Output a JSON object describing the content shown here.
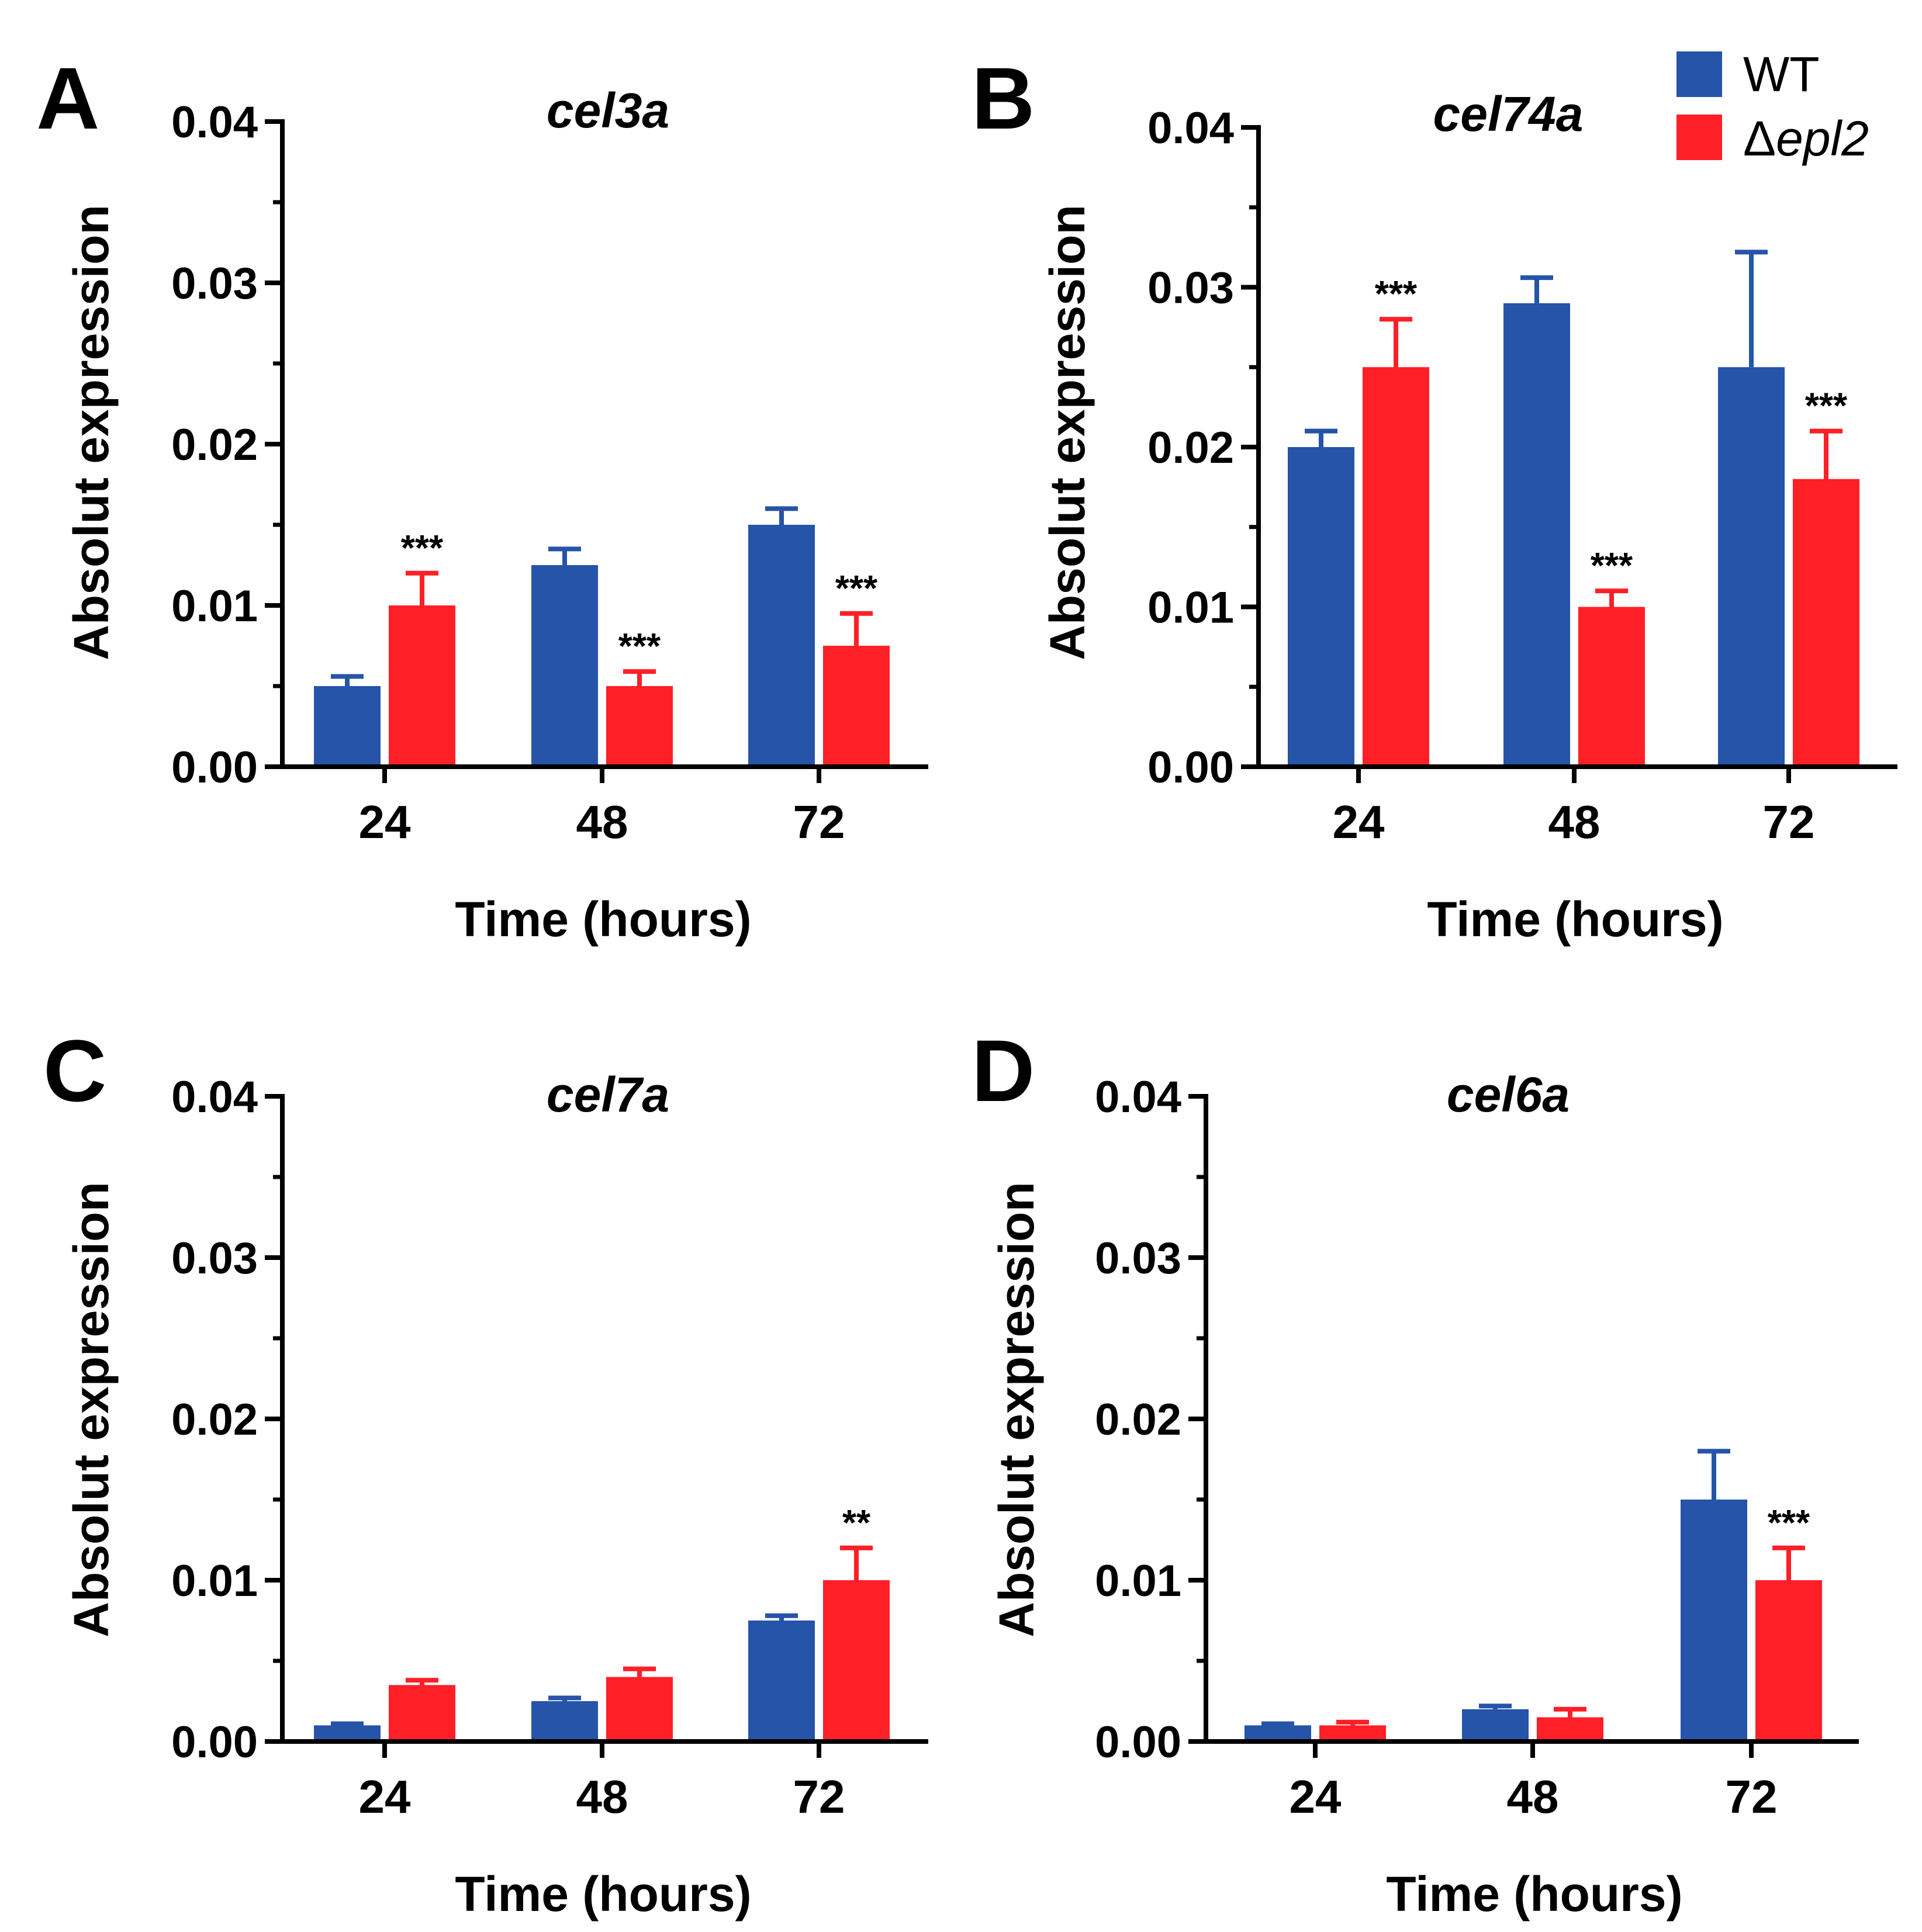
{
  "legend": {
    "entries": [
      {
        "label": "WT",
        "color": "#2554a8",
        "series": "WT"
      },
      {
        "label_prefix": "Δ",
        "label_italic": "epl2",
        "color": "#ff1f26",
        "series": "delta_epl2"
      }
    ]
  },
  "colors": {
    "wt": "#2554a8",
    "mutant": "#ff1f26",
    "axis": "#000000"
  },
  "chart_data": [
    {
      "panel": "A",
      "type": "bar",
      "title": "cel3a",
      "xlabel": "Time (hours)",
      "ylabel": "Absolut expression",
      "categories": [
        "24",
        "48",
        "72"
      ],
      "ylim": [
        0,
        0.04
      ],
      "yticks": [
        "0.00",
        "0.01",
        "0.02",
        "0.03",
        "0.04"
      ],
      "series": [
        {
          "name": "WT",
          "values": [
            0.005,
            0.0125,
            0.015
          ],
          "errors": [
            0.0006,
            0.001,
            0.001
          ]
        },
        {
          "name": "Δepl2",
          "values": [
            0.01,
            0.005,
            0.0075
          ],
          "errors": [
            0.002,
            0.0009,
            0.002
          ]
        }
      ],
      "annotations": [
        {
          "category": "24",
          "series": "Δepl2",
          "text": "***"
        },
        {
          "category": "48",
          "series": "Δepl2",
          "text": "***"
        },
        {
          "category": "72",
          "series": "Δepl2",
          "text": "***"
        }
      ]
    },
    {
      "panel": "B",
      "type": "bar",
      "title": "cel74a",
      "xlabel": "Time (hours)",
      "ylabel": "Absolut expression",
      "categories": [
        "24",
        "48",
        "72"
      ],
      "ylim": [
        0,
        0.04
      ],
      "yticks": [
        "0.00",
        "0.01",
        "0.02",
        "0.03",
        "0.04"
      ],
      "series": [
        {
          "name": "WT",
          "values": [
            0.02,
            0.029,
            0.025
          ],
          "errors": [
            0.001,
            0.0016,
            0.0072
          ]
        },
        {
          "name": "Δepl2",
          "values": [
            0.025,
            0.01,
            0.018
          ],
          "errors": [
            0.003,
            0.001,
            0.003
          ]
        }
      ],
      "annotations": [
        {
          "category": "24",
          "series": "Δepl2",
          "text": "***"
        },
        {
          "category": "48",
          "series": "Δepl2",
          "text": "***"
        },
        {
          "category": "72",
          "series": "Δepl2",
          "text": "***"
        }
      ]
    },
    {
      "panel": "C",
      "type": "bar",
      "title": "cel7a",
      "xlabel": "Time (hours)",
      "ylabel": "Absolut expression",
      "categories": [
        "24",
        "48",
        "72"
      ],
      "ylim": [
        0,
        0.04
      ],
      "yticks": [
        "0.00",
        "0.01",
        "0.02",
        "0.03",
        "0.04"
      ],
      "series": [
        {
          "name": "WT",
          "values": [
            0.001,
            0.0025,
            0.0075
          ],
          "errors": [
            0.0001,
            0.0002,
            0.0003
          ]
        },
        {
          "name": "Δepl2",
          "values": [
            0.0035,
            0.004,
            0.01
          ],
          "errors": [
            0.0003,
            0.0005,
            0.002
          ]
        }
      ],
      "annotations": [
        {
          "category": "72",
          "series": "Δepl2",
          "text": "**"
        }
      ]
    },
    {
      "panel": "D",
      "type": "bar",
      "title": "cel6a",
      "xlabel": "Time (hours)",
      "ylabel": "Absolut expression",
      "categories": [
        "24",
        "48",
        "72"
      ],
      "ylim": [
        0,
        0.04
      ],
      "yticks": [
        "0.00",
        "0.01",
        "0.02",
        "0.03",
        "0.04"
      ],
      "series": [
        {
          "name": "WT",
          "values": [
            0.001,
            0.002,
            0.015
          ],
          "errors": [
            0.0001,
            0.0002,
            0.003
          ]
        },
        {
          "name": "Δepl2",
          "values": [
            0.001,
            0.0015,
            0.01
          ],
          "errors": [
            0.0002,
            0.0005,
            0.002
          ]
        }
      ],
      "annotations": [
        {
          "category": "72",
          "series": "Δepl2",
          "text": "***"
        }
      ]
    }
  ]
}
